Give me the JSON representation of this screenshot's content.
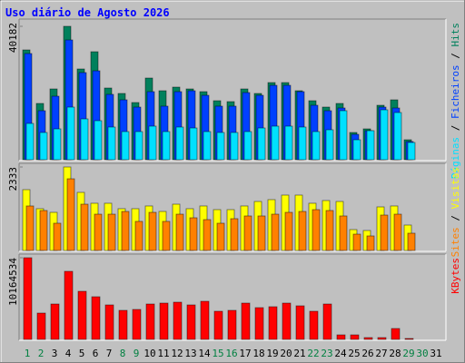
{
  "chart_data": [
    {
      "type": "bar",
      "title": "Uso diário de Agosto 2026",
      "legend_separator": " / ",
      "ylim": [
        0,
        40182
      ],
      "yticks": [
        40182
      ],
      "series": [
        {
          "name": "Hits",
          "color": "#00805c",
          "values": [
            33070,
            16945,
            21318,
            40182,
            27331,
            32524,
            21592,
            19952,
            17218,
            24598,
            20772,
            21865,
            21318,
            20498,
            17765,
            17492,
            21318,
            19952,
            23231,
            23231,
            20772,
            17765,
            15852,
            16945,
            8199,
            9293,
            16398,
            18038,
            6013,
            0,
            0
          ]
        },
        {
          "name": "Ficheiros",
          "color": "#0040ff",
          "values": [
            31980,
            14760,
            19130,
            36080,
            26240,
            26780,
            19680,
            18040,
            15850,
            20500,
            16130,
            20500,
            20770,
            19400,
            16130,
            16130,
            20220,
            19400,
            22410,
            22410,
            20500,
            16400,
            14760,
            15580,
            7650,
            8740,
            15850,
            15580,
            5470,
            0,
            0
          ]
        },
        {
          "name": "Páginas",
          "color": "#00e0ff",
          "values": [
            10930,
            8200,
            9290,
            15850,
            12300,
            11750,
            9840,
            8470,
            8470,
            10110,
            8470,
            9840,
            9560,
            8470,
            8200,
            8200,
            8470,
            9560,
            10110,
            10110,
            9840,
            8470,
            9020,
            14760,
            6010,
            8740,
            15030,
            14210,
            5190,
            0,
            0
          ]
        }
      ]
    },
    {
      "type": "bar",
      "ylim": [
        0,
        2333
      ],
      "yticks": [
        2333
      ],
      "series": [
        {
          "name": "Visitas",
          "color": "#ffff00",
          "values": [
            1699,
            1167,
            1065,
            2333,
            1623,
            1319,
            1319,
            1167,
            1167,
            1243,
            1090,
            1293,
            1167,
            1243,
            1141,
            1141,
            1243,
            1369,
            1420,
            1547,
            1547,
            1319,
            1395,
            1369,
            583,
            558,
            1217,
            1243,
            710,
            0,
            0
          ]
        },
        {
          "name": "Sites",
          "color": "#ff8000",
          "values": [
            1243,
            1116,
            761,
            2003,
            1293,
            1014,
            1014,
            1090,
            812,
            1065,
            812,
            1014,
            913,
            862,
            761,
            888,
            964,
            964,
            1014,
            1065,
            1090,
            1141,
            1116,
            964,
            456,
            406,
            989,
            1014,
            482,
            0,
            0
          ]
        }
      ]
    },
    {
      "type": "bar",
      "ylim": [
        0,
        10164534
      ],
      "yticks": [
        10164534
      ],
      "categories": [
        "1",
        "2",
        "3",
        "4",
        "5",
        "6",
        "7",
        "8",
        "9",
        "10",
        "11",
        "12",
        "13",
        "14",
        "15",
        "16",
        "17",
        "18",
        "19",
        "20",
        "21",
        "22",
        "23",
        "24",
        "25",
        "26",
        "27",
        "28",
        "29",
        "30",
        "31"
      ],
      "category_colors": [
        "#008040",
        "#008040",
        "#000000",
        "#000000",
        "#000000",
        "#000000",
        "#000000",
        "#008040",
        "#008040",
        "#000000",
        "#000000",
        "#000000",
        "#000000",
        "#000000",
        "#008040",
        "#008040",
        "#000000",
        "#000000",
        "#000000",
        "#000000",
        "#000000",
        "#008040",
        "#008040",
        "#000000",
        "#000000",
        "#000000",
        "#000000",
        "#000000",
        "#008040",
        "#008040",
        "#000000"
      ],
      "series": [
        {
          "name": "KBytes",
          "color": "#ff0000",
          "values": [
            10164534,
            3275231,
            4404621,
            8470425,
            5985767,
            5308133,
            4291682,
            3614048,
            3726987,
            4404621,
            4517560,
            4630499,
            4291682,
            4743438,
            3501109,
            3614048,
            4517560,
            3952865,
            4065804,
            4517560,
            4178743,
            3501109,
            4404621,
            564695,
            564695,
            225878,
            225878,
            1355268,
            112939,
            0,
            0
          ]
        }
      ]
    }
  ]
}
